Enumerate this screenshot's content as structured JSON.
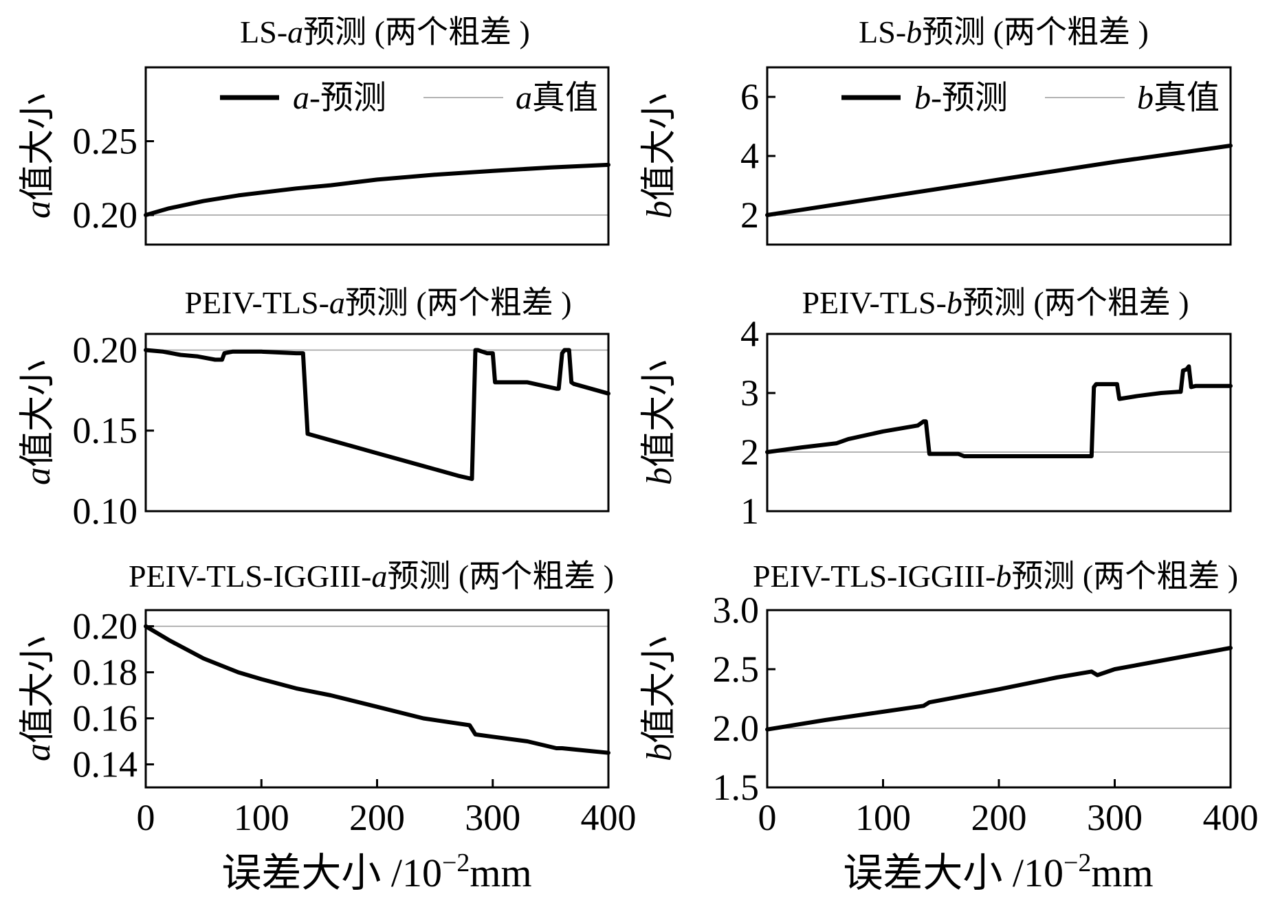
{
  "xlabel_bottom": {
    "prefix": "误差大小 /10",
    "exponent": "−2",
    "unit": "mm"
  },
  "chart_data": [
    {
      "type": "line",
      "id": "ls-a",
      "title": {
        "prefix": "LS-",
        "param": "a",
        "suffix": "预测 (两个粗差 )"
      },
      "ylabel": {
        "param": "a",
        "text": "值大小"
      },
      "xlim": [
        0,
        400
      ],
      "ylim": [
        0.18,
        0.3
      ],
      "yticks": [
        0.2,
        0.25
      ],
      "ytick_labels": [
        "0.20",
        "0.25"
      ],
      "xticks": [],
      "xtick_labels": [],
      "legend": {
        "pred": {
          "param": "a",
          "text": "-预测"
        },
        "true": {
          "param": "a",
          "text": "真值"
        }
      },
      "series": [
        {
          "name": "a-预测",
          "x": [
            0,
            20,
            50,
            80,
            100,
            130,
            160,
            200,
            250,
            300,
            350,
            400
          ],
          "y": [
            0.2,
            0.2045,
            0.2095,
            0.2133,
            0.2152,
            0.218,
            0.2202,
            0.224,
            0.2273,
            0.2299,
            0.2322,
            0.234
          ]
        },
        {
          "name": "a真值",
          "x": [
            0,
            400
          ],
          "y": [
            0.2,
            0.2
          ]
        }
      ]
    },
    {
      "type": "line",
      "id": "ls-b",
      "title": {
        "prefix": "LS-",
        "param": "b",
        "suffix": "预测 (两个粗差 )"
      },
      "ylabel": {
        "param": "b",
        "text": "值大小"
      },
      "xlim": [
        0,
        400
      ],
      "ylim": [
        1,
        7
      ],
      "yticks": [
        2,
        4,
        6
      ],
      "ytick_labels": [
        "2",
        "4",
        "6"
      ],
      "xticks": [],
      "xtick_labels": [],
      "legend": {
        "pred": {
          "param": "b",
          "text": "-预测"
        },
        "true": {
          "param": "b",
          "text": "真值"
        }
      },
      "series": [
        {
          "name": "b-预测",
          "x": [
            0,
            100,
            200,
            300,
            400
          ],
          "y": [
            2.0,
            2.6,
            3.2,
            3.8,
            4.35
          ]
        },
        {
          "name": "b真值",
          "x": [
            0,
            400
          ],
          "y": [
            2.0,
            2.0
          ]
        }
      ]
    },
    {
      "type": "line",
      "id": "peiv-a",
      "title": {
        "prefix": "PEIV-TLS-",
        "param": "a",
        "suffix": "预测 (两个粗差 )"
      },
      "ylabel": {
        "param": "a",
        "text": "值大小"
      },
      "xlim": [
        0,
        400
      ],
      "ylim": [
        0.1,
        0.21
      ],
      "yticks": [
        0.1,
        0.15,
        0.2
      ],
      "ytick_labels": [
        "0.10",
        "0.15",
        "0.20"
      ],
      "xticks": [],
      "xtick_labels": [],
      "series": [
        {
          "name": "a-预测",
          "x": [
            0,
            15,
            30,
            45,
            60,
            66,
            68,
            75,
            100,
            130,
            136,
            140,
            145,
            160,
            200,
            240,
            270,
            282,
            285,
            287,
            295,
            300,
            302,
            330,
            355,
            357,
            360,
            362,
            366,
            368,
            370,
            400
          ],
          "y": [
            0.2,
            0.199,
            0.197,
            0.196,
            0.194,
            0.194,
            0.198,
            0.199,
            0.199,
            0.198,
            0.198,
            0.148,
            0.147,
            0.144,
            0.136,
            0.128,
            0.122,
            0.12,
            0.2,
            0.2,
            0.198,
            0.198,
            0.18,
            0.18,
            0.176,
            0.176,
            0.198,
            0.2,
            0.2,
            0.18,
            0.179,
            0.173
          ]
        },
        {
          "name": "a真值",
          "x": [
            0,
            400
          ],
          "y": [
            0.2,
            0.2
          ]
        }
      ]
    },
    {
      "type": "line",
      "id": "peiv-b",
      "title": {
        "prefix": "PEIV-TLS-",
        "param": "b",
        "suffix": "预测 (两个粗差 )"
      },
      "ylabel": {
        "param": "b",
        "text": "值大小"
      },
      "xlim": [
        0,
        400
      ],
      "ylim": [
        1,
        4
      ],
      "yticks": [
        1,
        2,
        3,
        4
      ],
      "ytick_labels": [
        "1",
        "2",
        "3",
        "4"
      ],
      "xticks": [],
      "xtick_labels": [],
      "series": [
        {
          "name": "b-预测",
          "x": [
            0,
            30,
            60,
            70,
            100,
            130,
            135,
            137,
            140,
            165,
            170,
            200,
            240,
            280,
            282,
            284,
            300,
            302,
            304,
            320,
            340,
            355,
            357,
            359,
            362,
            364,
            366,
            370,
            400
          ],
          "y": [
            2.0,
            2.08,
            2.15,
            2.22,
            2.35,
            2.45,
            2.52,
            2.52,
            1.97,
            1.97,
            1.93,
            1.93,
            1.93,
            1.93,
            3.1,
            3.15,
            3.15,
            3.15,
            2.9,
            2.95,
            3.0,
            3.02,
            3.02,
            3.38,
            3.4,
            3.45,
            3.1,
            3.12,
            3.12
          ]
        },
        {
          "name": "b真值",
          "x": [
            0,
            400
          ],
          "y": [
            2.0,
            2.0
          ]
        }
      ]
    },
    {
      "type": "line",
      "id": "iggiii-a",
      "title": {
        "prefix": "PEIV-TLS-IGGIII-",
        "param": "a",
        "suffix": "预测 (两个粗差 )"
      },
      "ylabel": {
        "param": "a",
        "text": "值大小"
      },
      "xlim": [
        0,
        400
      ],
      "ylim": [
        0.13,
        0.207
      ],
      "yticks": [
        0.14,
        0.16,
        0.18,
        0.2
      ],
      "ytick_labels": [
        "0.14",
        "0.16",
        "0.18",
        "0.20"
      ],
      "xticks": [
        0,
        100,
        200,
        300,
        400
      ],
      "xtick_labels": [
        "0",
        "100",
        "200",
        "300",
        "400"
      ],
      "series": [
        {
          "name": "a-预测",
          "x": [
            0,
            20,
            50,
            80,
            100,
            130,
            140,
            160,
            200,
            240,
            280,
            285,
            300,
            330,
            355,
            360,
            380,
            400
          ],
          "y": [
            0.2,
            0.194,
            0.186,
            0.18,
            0.177,
            0.173,
            0.172,
            0.17,
            0.165,
            0.16,
            0.157,
            0.153,
            0.152,
            0.15,
            0.147,
            0.147,
            0.146,
            0.145
          ]
        },
        {
          "name": "a真值",
          "x": [
            0,
            400
          ],
          "y": [
            0.2,
            0.2
          ]
        }
      ]
    },
    {
      "type": "line",
      "id": "iggiii-b",
      "title": {
        "prefix": "PEIV-TLS-IGGIII-",
        "param": "b",
        "suffix": "预测 (两个粗差 )"
      },
      "ylabel": {
        "param": "b",
        "text": "值大小"
      },
      "xlim": [
        0,
        400
      ],
      "ylim": [
        1.5,
        3.0
      ],
      "yticks": [
        1.5,
        2.0,
        2.5,
        3.0
      ],
      "ytick_labels": [
        "1.5",
        "2.0",
        "2.5",
        "3.0"
      ],
      "xticks": [
        0,
        100,
        200,
        300,
        400
      ],
      "xtick_labels": [
        "0",
        "100",
        "200",
        "300",
        "400"
      ],
      "series": [
        {
          "name": "b-预测",
          "x": [
            0,
            50,
            100,
            135,
            140,
            200,
            250,
            280,
            285,
            300,
            350,
            400
          ],
          "y": [
            1.99,
            2.07,
            2.14,
            2.19,
            2.22,
            2.33,
            2.43,
            2.48,
            2.45,
            2.5,
            2.59,
            2.68
          ]
        },
        {
          "name": "b真值",
          "x": [
            0,
            400
          ],
          "y": [
            2.0,
            2.0
          ]
        }
      ]
    }
  ]
}
